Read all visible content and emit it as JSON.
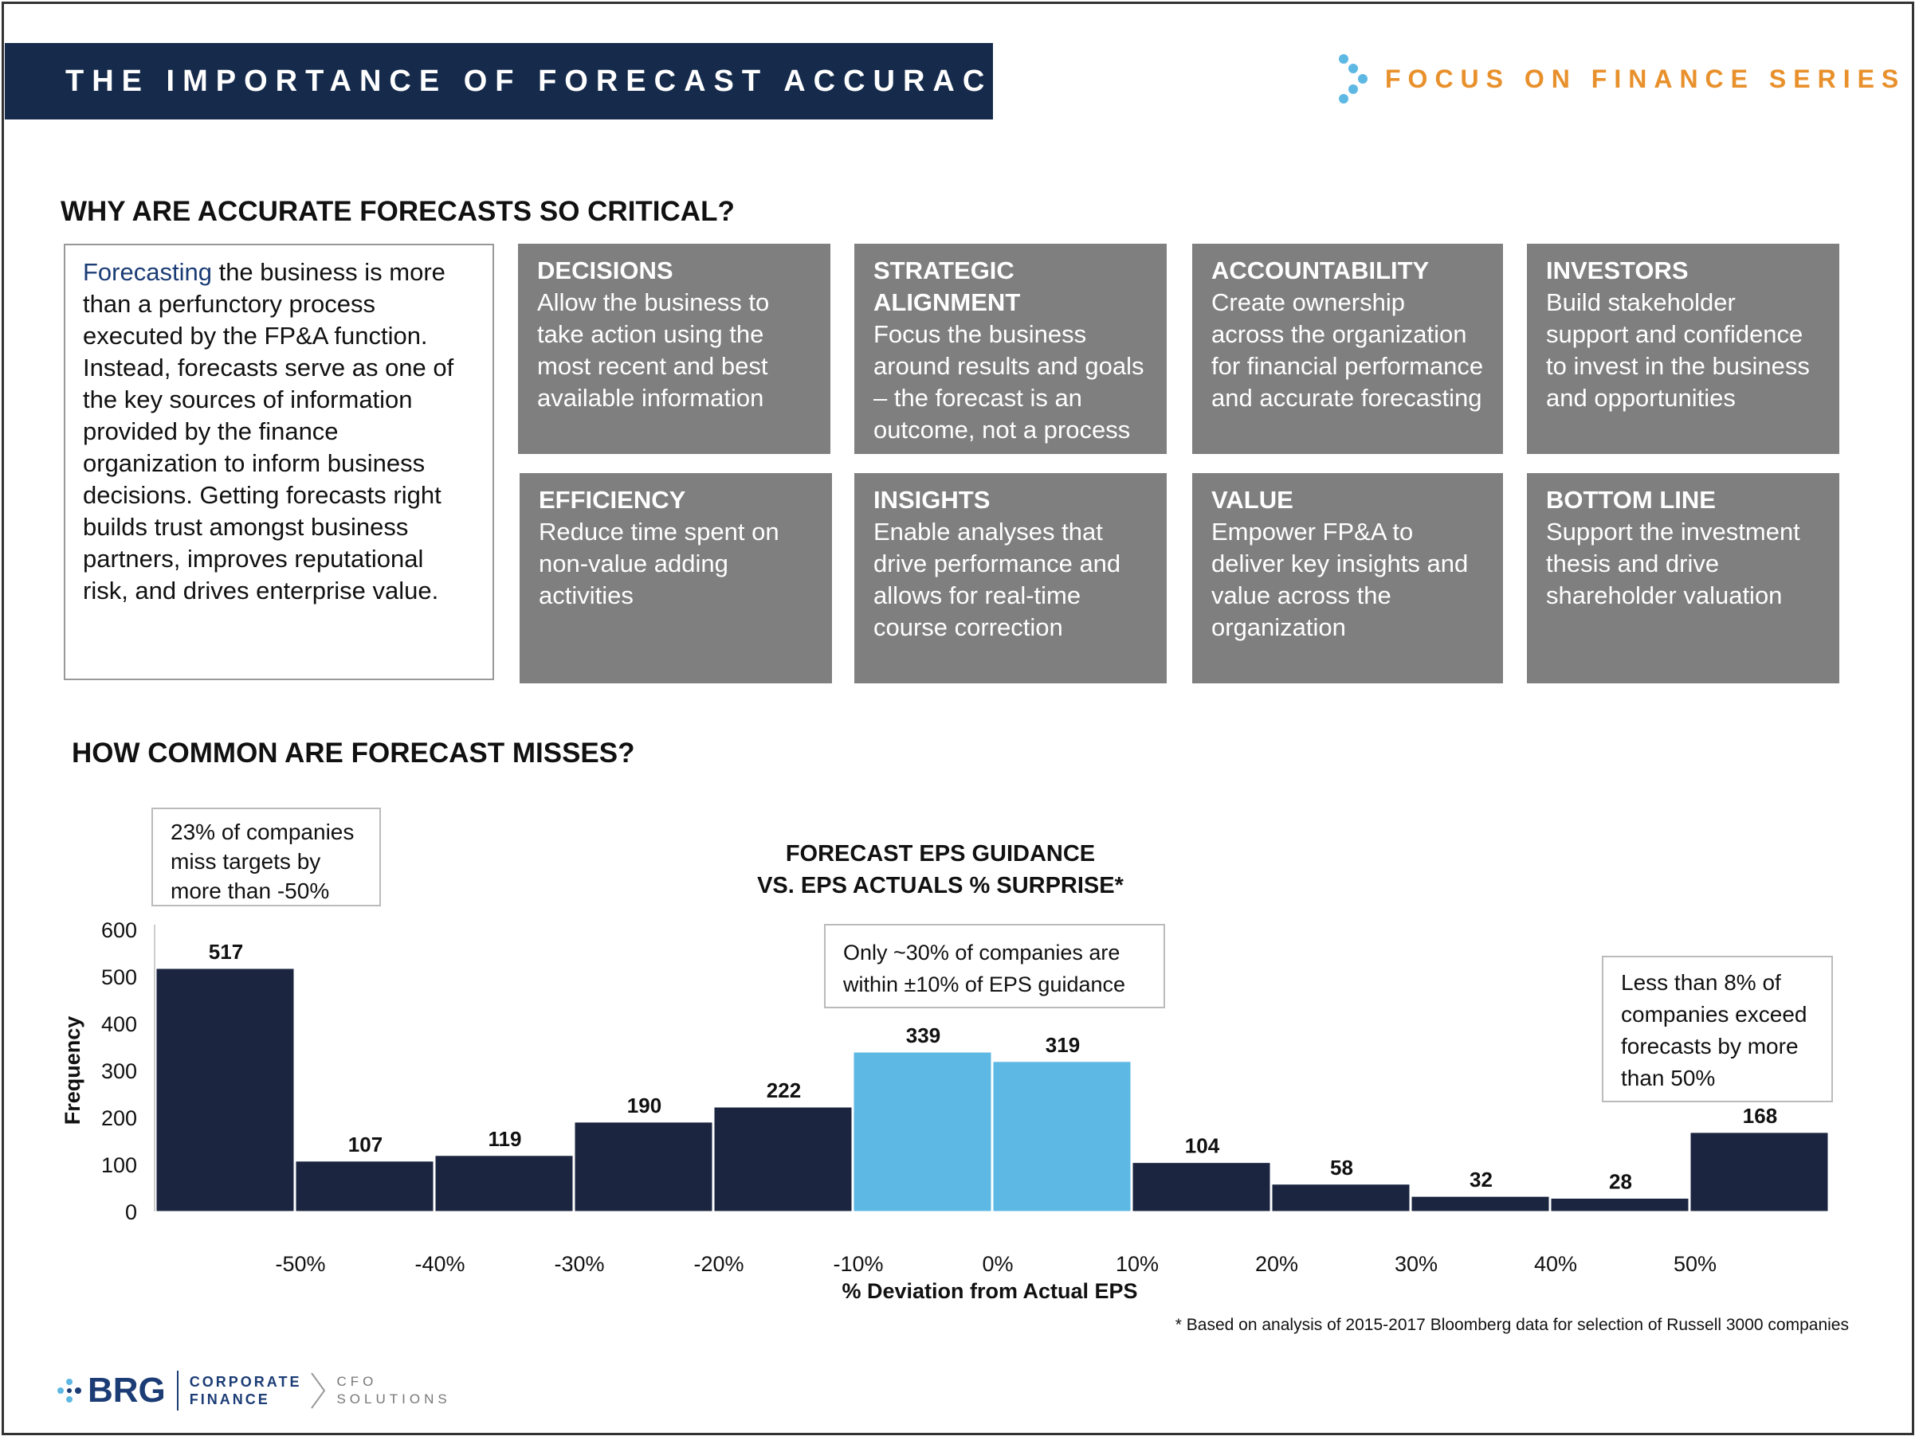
{
  "header": {
    "title": "THE IMPORTANCE OF FORECAST ACCURACY",
    "series": "FOCUS ON FINANCE SERIES",
    "title_bg": "#162b4c",
    "series_color": "#e8902b"
  },
  "section1": {
    "heading": "WHY ARE ACCURATE FORECASTS SO CRITICAL?",
    "intro_highlight": "Forecasting",
    "intro_rest": " the business is more than a perfunctory process executed by the FP&A function. Instead, forecasts serve as one of the key sources of information provided by the finance organization to inform business decisions.  Getting forecasts right builds trust amongst business partners, improves reputational risk, and drives enterprise value.",
    "cards": [
      {
        "title": "DECISIONS",
        "text": "Allow the business to take action using the most recent and best available information"
      },
      {
        "title": "STRATEGIC ALIGNMENT",
        "text": "Focus the business around results and goals – the forecast is an outcome, not a process"
      },
      {
        "title": "ACCOUNTABILITY",
        "text": "Create ownership across the organization for financial performance and accurate forecasting"
      },
      {
        "title": "INVESTORS",
        "text": "Build stakeholder support and confidence to invest in the business and opportunities"
      },
      {
        "title": "EFFICIENCY",
        "text": "Reduce time spent on non-value adding activities"
      },
      {
        "title": "INSIGHTS",
        "text": "Enable analyses that drive performance and allows for real-time course correction"
      },
      {
        "title": "VALUE",
        "text": "Empower FP&A to deliver key insights and value across the organization"
      },
      {
        "title": "BOTTOM LINE",
        "text": "Support the investment thesis and drive shareholder valuation"
      }
    ]
  },
  "section2": {
    "heading": "HOW COMMON ARE FORECAST MISSES?",
    "callout_left": "23% of companies miss targets by more than -50%",
    "callout_mid": "Only ~30% of companies are within ±10% of EPS guidance",
    "callout_right": "Less than 8% of companies exceed forecasts by more than 50%",
    "footnote": "* Based on analysis of 2015-2017 Bloomberg data for selection of Russell 3000 companies"
  },
  "chart_data": {
    "type": "bar",
    "title": "FORECAST EPS GUIDANCE VS. EPS ACTUALS % SURPRISE*",
    "title_lines": [
      "FORECAST EPS GUIDANCE",
      "VS. EPS ACTUALS % SURPRISE*"
    ],
    "xlabel": "% Deviation from Actual EPS",
    "ylabel": "Frequency",
    "ylim": [
      0,
      600
    ],
    "yticks": [
      0,
      100,
      200,
      300,
      400,
      500,
      600
    ],
    "x_tick_labels": [
      "-50%",
      "-40%",
      "-30%",
      "-20%",
      "-10%",
      "0%",
      "10%",
      "20%",
      "30%",
      "40%",
      "50%"
    ],
    "values": [
      517,
      107,
      119,
      190,
      222,
      339,
      319,
      104,
      58,
      32,
      28,
      168
    ],
    "highlighted_bins": [
      5,
      6
    ],
    "colors": {
      "default": "#1b2540",
      "highlight": "#5db8e3"
    },
    "grid": false,
    "legend": "none"
  },
  "footer": {
    "logo_text": "BRG",
    "logo_line1": "CORPORATE",
    "logo_line2": "FINANCE",
    "logo_sub1": "CFO",
    "logo_sub2": "SOLUTIONS"
  }
}
